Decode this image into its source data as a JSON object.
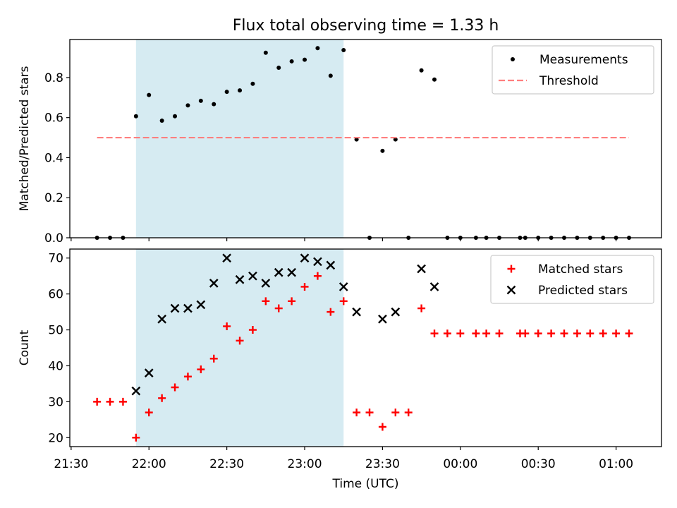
{
  "chart_data": {
    "title": "Flux total observing time = 1.33 h",
    "xlabel": "Time (UTC)",
    "x_tick_labels": [
      "21:30",
      "22:00",
      "22:30",
      "23:00",
      "23:30",
      "00:00",
      "00:30",
      "01:00"
    ],
    "x_tick_minutes": [
      0,
      30,
      60,
      90,
      120,
      150,
      180,
      210
    ],
    "xlim_minutes_after_2130": [
      -0.5,
      227.5
    ],
    "shaded_interval_minutes_after_2130": [
      25,
      105
    ],
    "shade_color": "#add8e6",
    "panels": [
      {
        "type": "scatter",
        "ylabel": "Matched/Predicted stars",
        "ylim": [
          0,
          0.99
        ],
        "y_ticks": [
          0.0,
          0.2,
          0.4,
          0.6,
          0.8
        ],
        "y_tick_labels": [
          "0.0",
          "0.2",
          "0.4",
          "0.6",
          "0.8"
        ],
        "legend_position": "top-right",
        "series": [
          {
            "name": "Measurements",
            "marker": "dot",
            "color": "#000000",
            "x": [
              10,
              15,
              20,
              25,
              30,
              35,
              40,
              45,
              50,
              55,
              60,
              65,
              70,
              75,
              80,
              85,
              90,
              95,
              100,
              105,
              110,
              115,
              120,
              125,
              130,
              135,
              140,
              145,
              150,
              156,
              160,
              165,
              173,
              175,
              180,
              185,
              190,
              195,
              200,
              205,
              210,
              215
            ],
            "y": [
              0,
              0,
              0,
              0.607,
              0.713,
              0.585,
              0.607,
              0.661,
              0.684,
              0.667,
              0.729,
              0.736,
              0.769,
              0.924,
              0.849,
              0.881,
              0.889,
              0.947,
              0.809,
              0.937,
              0.491,
              0,
              0.434,
              0.491,
              0,
              0.836,
              0.79,
              0,
              0,
              0,
              0,
              0,
              0,
              0,
              0,
              0,
              0,
              0,
              0,
              0,
              0,
              0
            ]
          },
          {
            "name": "Threshold",
            "line": "dashed",
            "color": "#ff7f7f",
            "x": [
              10,
              215
            ],
            "y": [
              0.5,
              0.5
            ]
          }
        ]
      },
      {
        "type": "scatter",
        "ylabel": "Count",
        "ylim": [
          17.5,
          72.5
        ],
        "y_ticks": [
          20,
          30,
          40,
          50,
          60,
          70
        ],
        "y_tick_labels": [
          "20",
          "30",
          "40",
          "50",
          "60",
          "70"
        ],
        "legend_position": "top-right",
        "series": [
          {
            "name": "Matched stars",
            "marker": "plus",
            "color": "#ff0000",
            "x": [
              10,
              15,
              20,
              25,
              30,
              35,
              40,
              45,
              50,
              55,
              60,
              65,
              70,
              75,
              80,
              85,
              90,
              95,
              100,
              105,
              110,
              115,
              120,
              125,
              130,
              135,
              140,
              145,
              150,
              156,
              160,
              165,
              173,
              175,
              180,
              185,
              190,
              195,
              200,
              205,
              210,
              215
            ],
            "y": [
              30,
              30,
              30,
              20,
              27,
              31,
              34,
              37,
              39,
              42,
              51,
              47,
              50,
              58,
              56,
              58,
              62,
              65,
              55,
              58,
              27,
              27,
              23,
              27,
              27,
              56,
              49,
              49,
              49,
              49,
              49,
              49,
              49,
              49,
              49,
              49,
              49,
              49,
              49,
              49,
              49,
              49
            ]
          },
          {
            "name": "Predicted stars",
            "marker": "x",
            "color": "#000000",
            "x": [
              25,
              30,
              35,
              40,
              45,
              50,
              55,
              60,
              65,
              70,
              75,
              80,
              85,
              90,
              95,
              100,
              105,
              110,
              120,
              125,
              135,
              140
            ],
            "y": [
              33,
              38,
              53,
              56,
              56,
              57,
              63,
              70,
              64,
              65,
              63,
              66,
              66,
              70,
              69,
              68,
              62,
              55,
              53,
              55,
              67,
              62
            ]
          }
        ]
      }
    ]
  }
}
